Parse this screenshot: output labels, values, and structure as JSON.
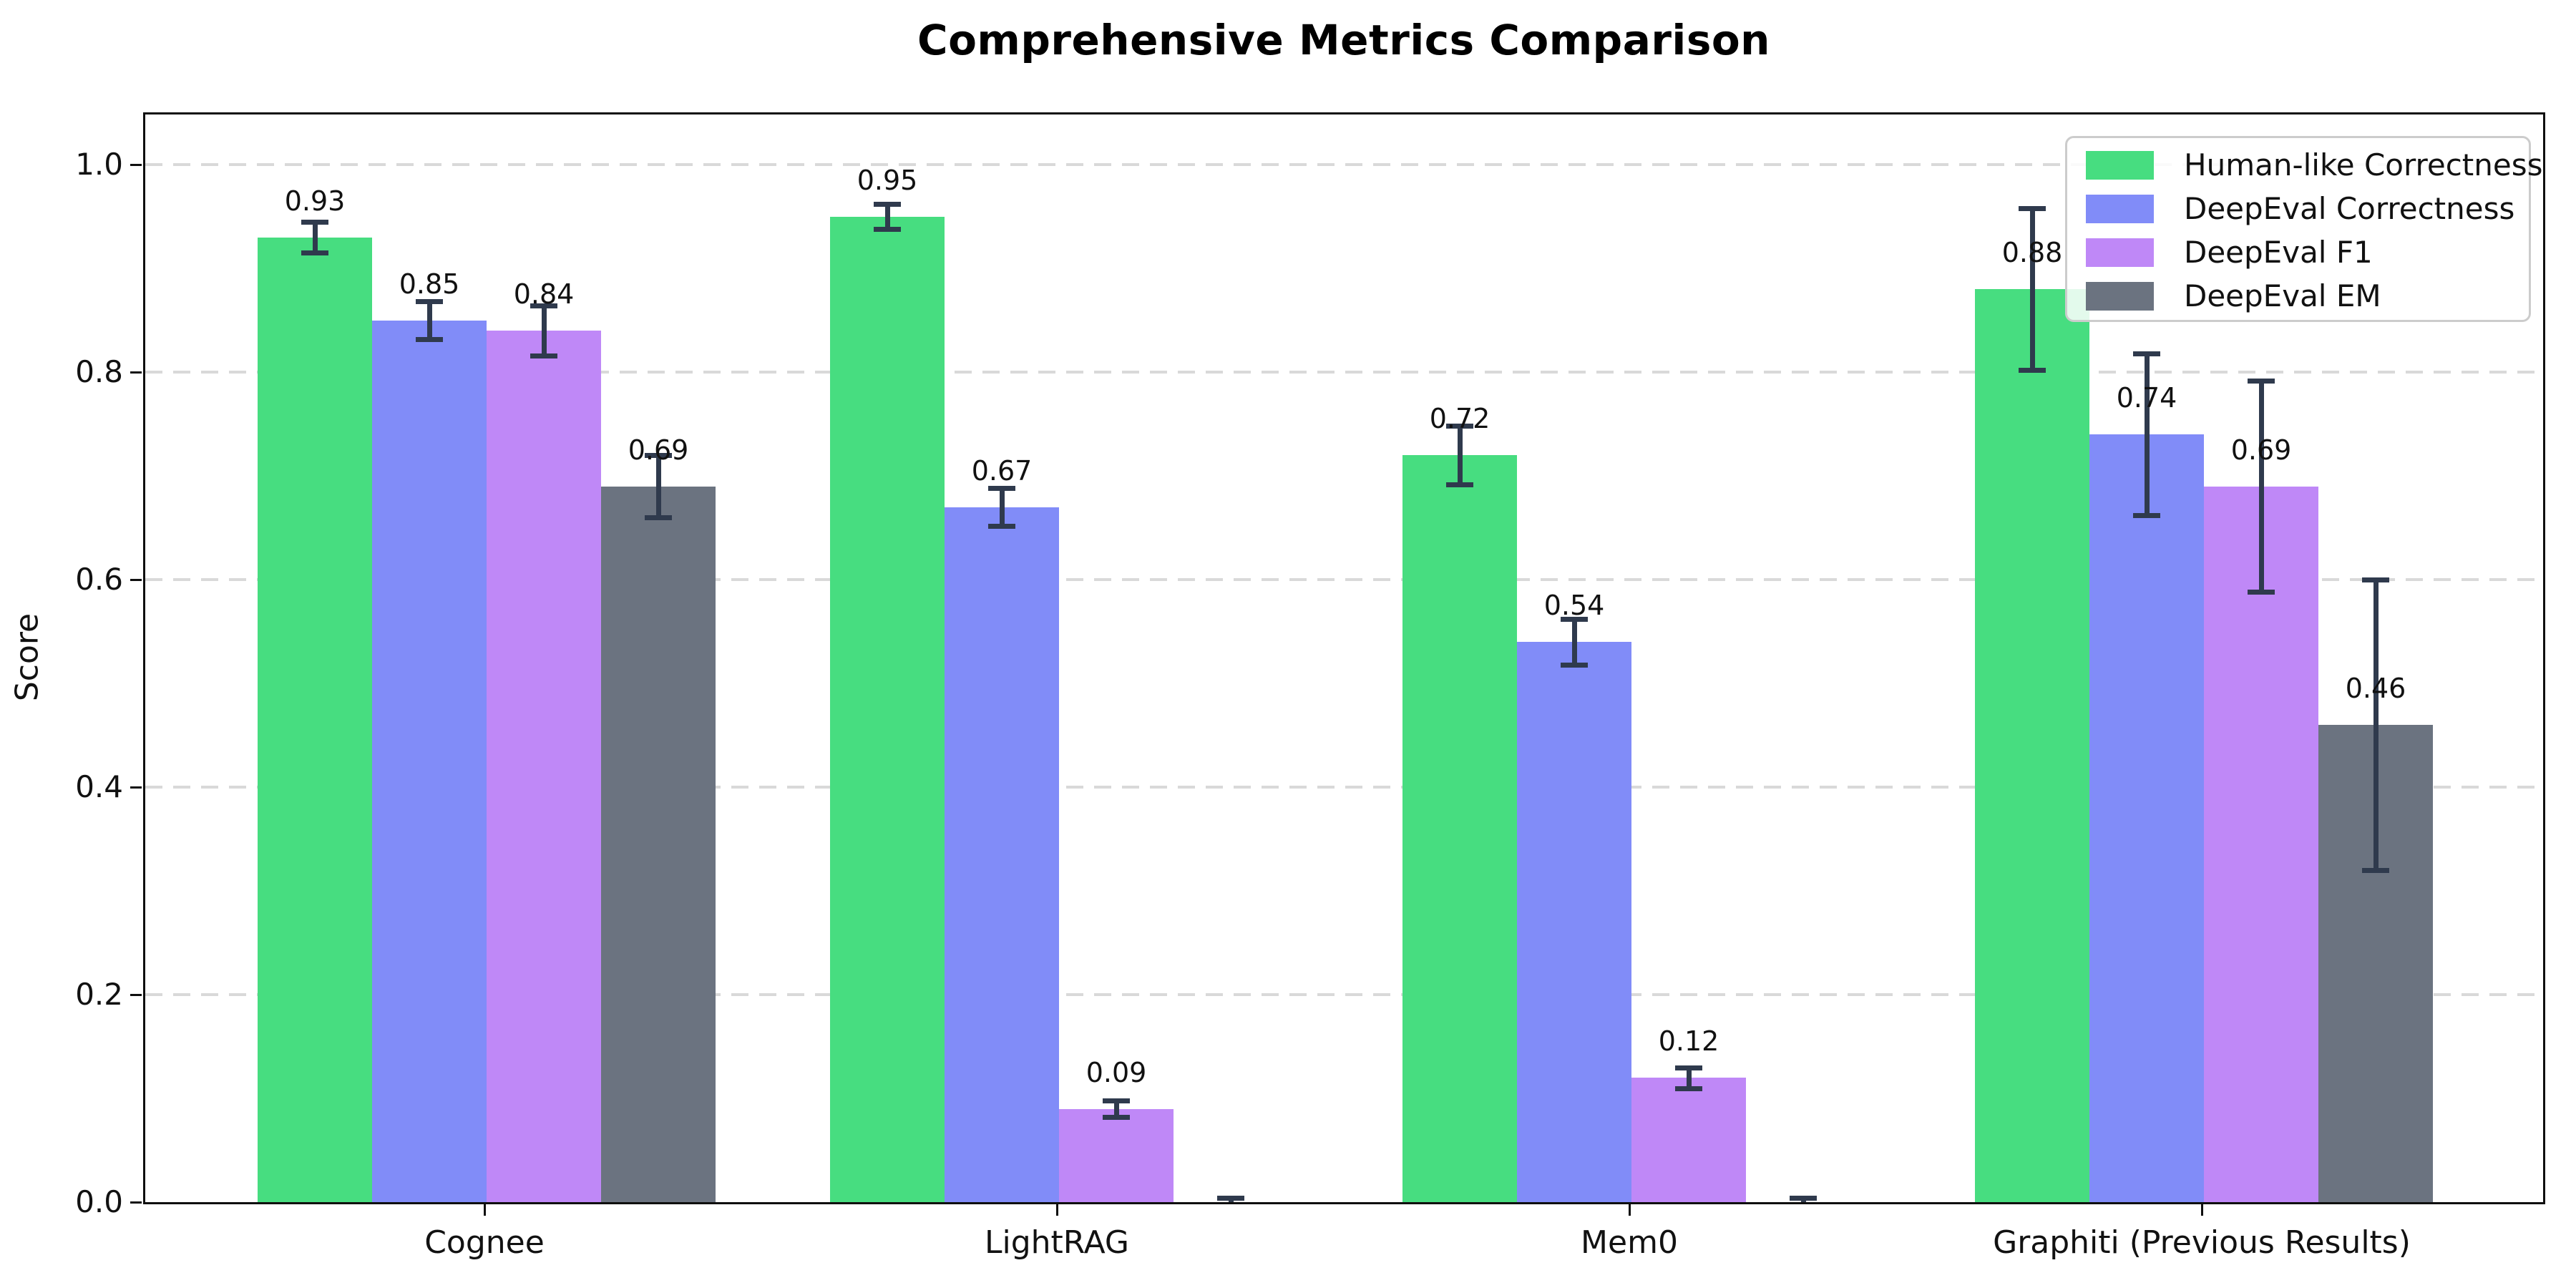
{
  "chart_data": {
    "type": "bar",
    "title": "Comprehensive Metrics Comparison",
    "xlabel": "",
    "ylabel": "Score",
    "ylim": [
      0,
      1.05
    ],
    "grid": "horizontal-dashed",
    "legend_position": "upper-right",
    "y_ticks": [
      {
        "value": 0.0,
        "label": "0.0"
      },
      {
        "value": 0.2,
        "label": "0.2"
      },
      {
        "value": 0.4,
        "label": "0.4"
      },
      {
        "value": 0.6,
        "label": "0.6"
      },
      {
        "value": 0.8,
        "label": "0.8"
      },
      {
        "value": 1.0,
        "label": "1.0"
      }
    ],
    "categories": [
      "Cognee",
      "LightRAG",
      "Mem0",
      "Graphiti (Previous Results)"
    ],
    "series": [
      {
        "name": "Human-like Correctness",
        "color": "#47dd80",
        "values": [
          0.93,
          0.95,
          0.72,
          0.88
        ],
        "errors": [
          0.015,
          0.012,
          0.028,
          0.078
        ],
        "labels": [
          "0.93",
          "0.95",
          "0.72",
          "0.88"
        ]
      },
      {
        "name": "DeepEval Correctness",
        "color": "#818cf8",
        "values": [
          0.85,
          0.67,
          0.54,
          0.74
        ],
        "errors": [
          0.018,
          0.018,
          0.022,
          0.078
        ],
        "labels": [
          "0.85",
          "0.67",
          "0.54",
          "0.74"
        ]
      },
      {
        "name": "DeepEval F1",
        "color": "#bf88f7",
        "values": [
          0.84,
          0.09,
          0.12,
          0.69
        ],
        "errors": [
          0.024,
          0.008,
          0.01,
          0.102
        ],
        "labels": [
          "0.84",
          "0.09",
          "0.12",
          "0.69"
        ]
      },
      {
        "name": "DeepEval EM",
        "color": "#6b7380",
        "values": [
          0.69,
          0.0,
          0.0,
          0.46
        ],
        "errors": [
          0.03,
          0.004,
          0.004,
          0.14
        ],
        "labels": [
          "0.69",
          "",
          "",
          "0.46"
        ]
      }
    ],
    "colors": {
      "error_bar": "#2f3a4d",
      "grid": "#d9d9d9",
      "axis": "#0f0f0f",
      "legend_border": "#cccccc"
    }
  }
}
